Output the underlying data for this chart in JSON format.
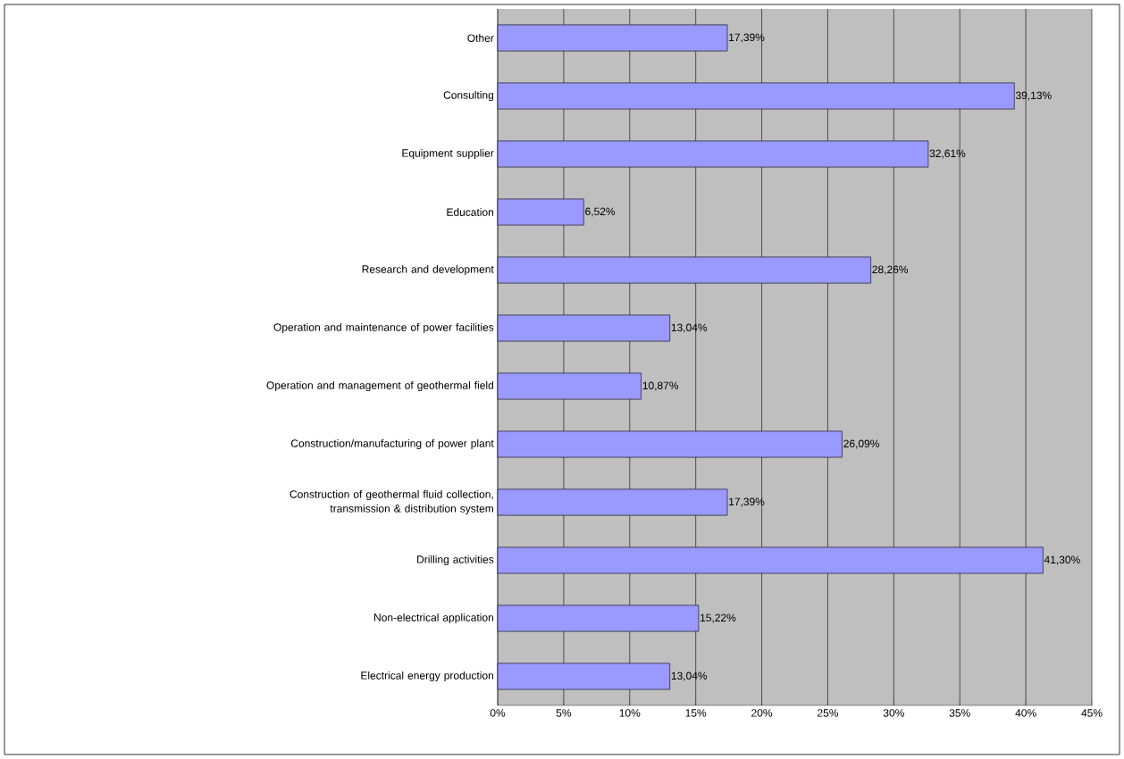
{
  "chart_data": {
    "type": "bar",
    "orientation": "horizontal",
    "categories": [
      "Other",
      "Consulting",
      "Equipment supplier",
      "Education",
      "Research and development",
      "Operation and maintenance of power facilities",
      "Operation and management of geothermal field",
      "Construction/manufacturing of power plant",
      "Construction of geothermal fluid collection, transmission & distribution system",
      "Drilling activities",
      "Non-electrical application",
      "Electrical energy production"
    ],
    "values": [
      17.39,
      39.13,
      32.61,
      6.52,
      28.26,
      13.04,
      10.87,
      26.09,
      17.39,
      41.3,
      15.22,
      13.04
    ],
    "value_labels": [
      "17,39%",
      "39,13%",
      "32,61%",
      "6,52%",
      "28,26%",
      "13,04%",
      "10,87%",
      "26,09%",
      "17,39%",
      "41,30%",
      "15,22%",
      "13,04%"
    ],
    "color": "#9999ff",
    "xlim": [
      0,
      45
    ],
    "xticks": [
      {
        "value": 0,
        "label": "0%"
      },
      {
        "value": 5,
        "label": "5%"
      },
      {
        "value": 10,
        "label": "10%"
      },
      {
        "value": 15,
        "label": "15%"
      },
      {
        "value": 20,
        "label": "20%"
      },
      {
        "value": 25,
        "label": "25%"
      },
      {
        "value": 30,
        "label": "30%"
      },
      {
        "value": 35,
        "label": "35%"
      },
      {
        "value": 40,
        "label": "40%"
      },
      {
        "value": 45,
        "label": "45%"
      }
    ],
    "grid": "x"
  }
}
